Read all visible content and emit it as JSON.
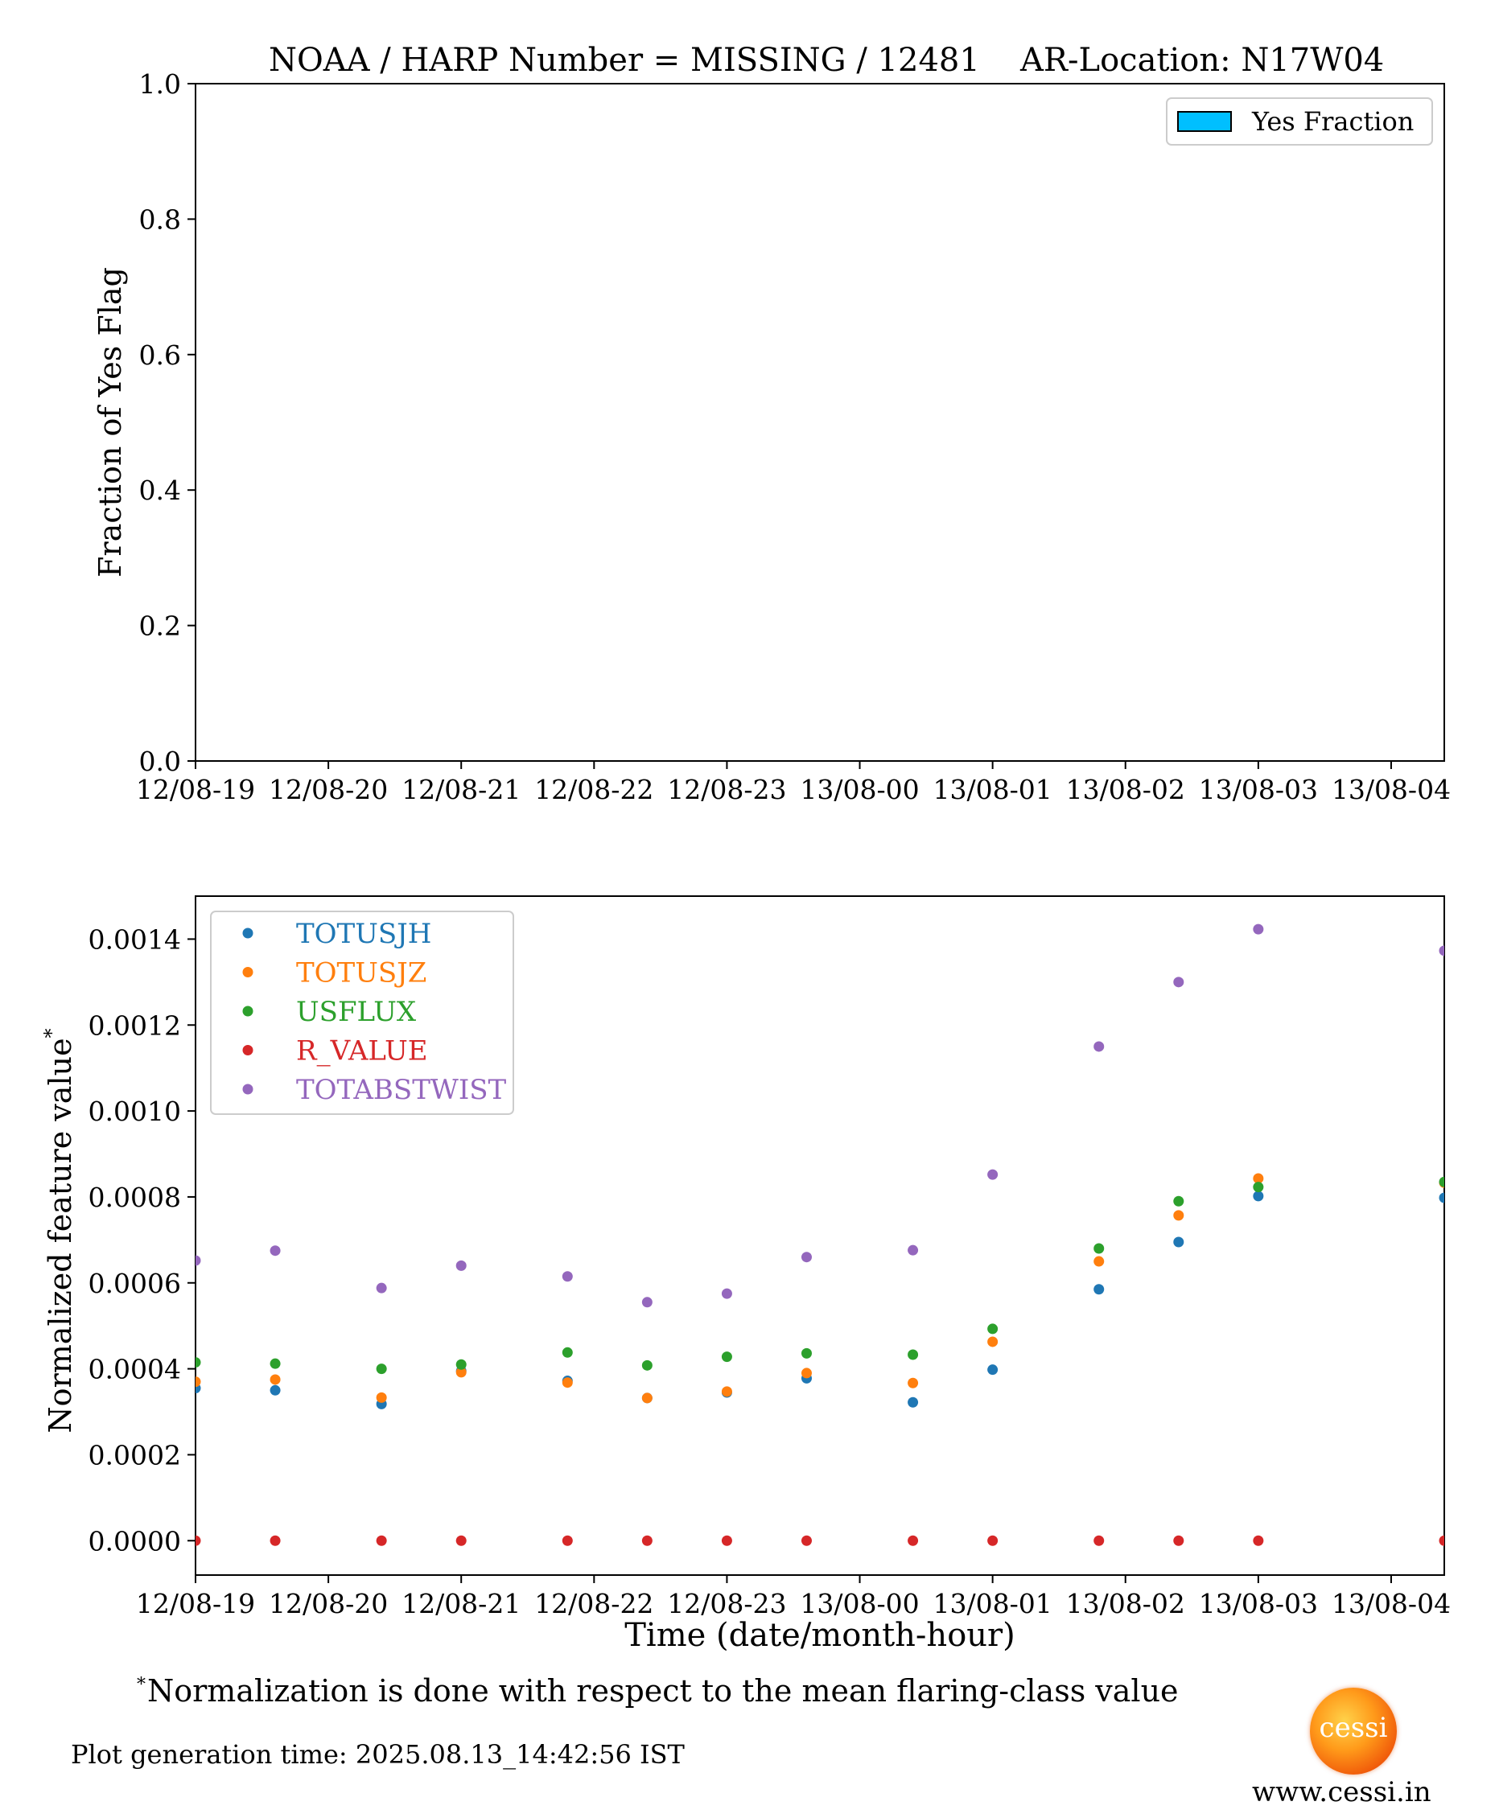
{
  "title": {
    "noaa_harp": "NOAA / HARP Number = MISSING / 12481",
    "ar_location": "AR-Location: N17W04"
  },
  "chart_data": [
    {
      "type": "bar",
      "ylabel": "Fraction of Yes Flag",
      "ylim": [
        0,
        1
      ],
      "yticks": [
        "0.0",
        "0.2",
        "0.4",
        "0.6",
        "0.8",
        "1.0"
      ],
      "xticks": [
        "12/08-19",
        "12/08-20",
        "12/08-21",
        "12/08-22",
        "12/08-23",
        "13/08-00",
        "13/08-01",
        "13/08-02",
        "13/08-03",
        "13/08-04"
      ],
      "legend": {
        "placement": "top-right",
        "entries": [
          {
            "name": "Yes Fraction",
            "color": "#00bfff"
          }
        ]
      },
      "values": []
    },
    {
      "type": "scatter",
      "ylabel": "Normalized feature value",
      "ylabel_mark": "*",
      "xlabel": "Time (date/month-hour)",
      "ylim": [
        -8e-05,
        0.0015
      ],
      "xlim": [
        0,
        9.4
      ],
      "yticks": [
        {
          "value": 0.0,
          "label": "0.0000"
        },
        {
          "value": 0.0002,
          "label": "0.0002"
        },
        {
          "value": 0.0004,
          "label": "0.0004"
        },
        {
          "value": 0.0006,
          "label": "0.0006"
        },
        {
          "value": 0.0008,
          "label": "0.0008"
        },
        {
          "value": 0.001,
          "label": "0.0010"
        },
        {
          "value": 0.0012,
          "label": "0.0012"
        },
        {
          "value": 0.0014,
          "label": "0.0014"
        }
      ],
      "xticks": [
        "12/08-19",
        "12/08-20",
        "12/08-21",
        "12/08-22",
        "12/08-23",
        "13/08-00",
        "13/08-01",
        "13/08-02",
        "13/08-03",
        "13/08-04"
      ],
      "legend": {
        "placement": "top-left"
      },
      "x": [
        0,
        0.6,
        1.4,
        2.0,
        2.8,
        3.4,
        4.0,
        4.6,
        5.4,
        6.0,
        6.8,
        7.4,
        8.0,
        9.4
      ],
      "series": [
        {
          "name": "TOTUSJH",
          "color": "#1f77b4",
          "values": [
            0.000355,
            0.00035,
            0.000318,
            0.000395,
            0.000372,
            0.000332,
            0.000345,
            0.000378,
            0.000322,
            0.000398,
            0.000585,
            0.000695,
            0.000802,
            0.000798
          ]
        },
        {
          "name": "TOTUSJZ",
          "color": "#ff7f0e",
          "values": [
            0.00037,
            0.000375,
            0.000333,
            0.000392,
            0.000368,
            0.000332,
            0.000347,
            0.00039,
            0.000367,
            0.000463,
            0.00065,
            0.000757,
            0.000843,
            0.000833
          ]
        },
        {
          "name": "USFLUX",
          "color": "#2ca02c",
          "values": [
            0.000415,
            0.000412,
            0.0004,
            0.00041,
            0.000438,
            0.000408,
            0.000428,
            0.000436,
            0.000433,
            0.000493,
            0.00068,
            0.00079,
            0.000823,
            0.000835
          ]
        },
        {
          "name": "R_VALUE",
          "color": "#d62728",
          "values": [
            0,
            0,
            0,
            0,
            0,
            0,
            0,
            0,
            0,
            0,
            0,
            0,
            0,
            0
          ]
        },
        {
          "name": "TOTABSTWIST",
          "color": "#9467bd",
          "values": [
            0.000652,
            0.000675,
            0.000588,
            0.00064,
            0.000615,
            0.000555,
            0.000575,
            0.00066,
            0.000676,
            0.000852,
            0.00115,
            0.0013,
            0.001423,
            0.001373
          ]
        }
      ]
    }
  ],
  "footnote": {
    "mark": "*",
    "text": "Normalization is done with respect to the mean flaring-class value"
  },
  "generation_time": "Plot generation time: 2025.08.13_14:42:56 IST",
  "logo": {
    "text": "cessi"
  },
  "website": "www.cessi.in"
}
